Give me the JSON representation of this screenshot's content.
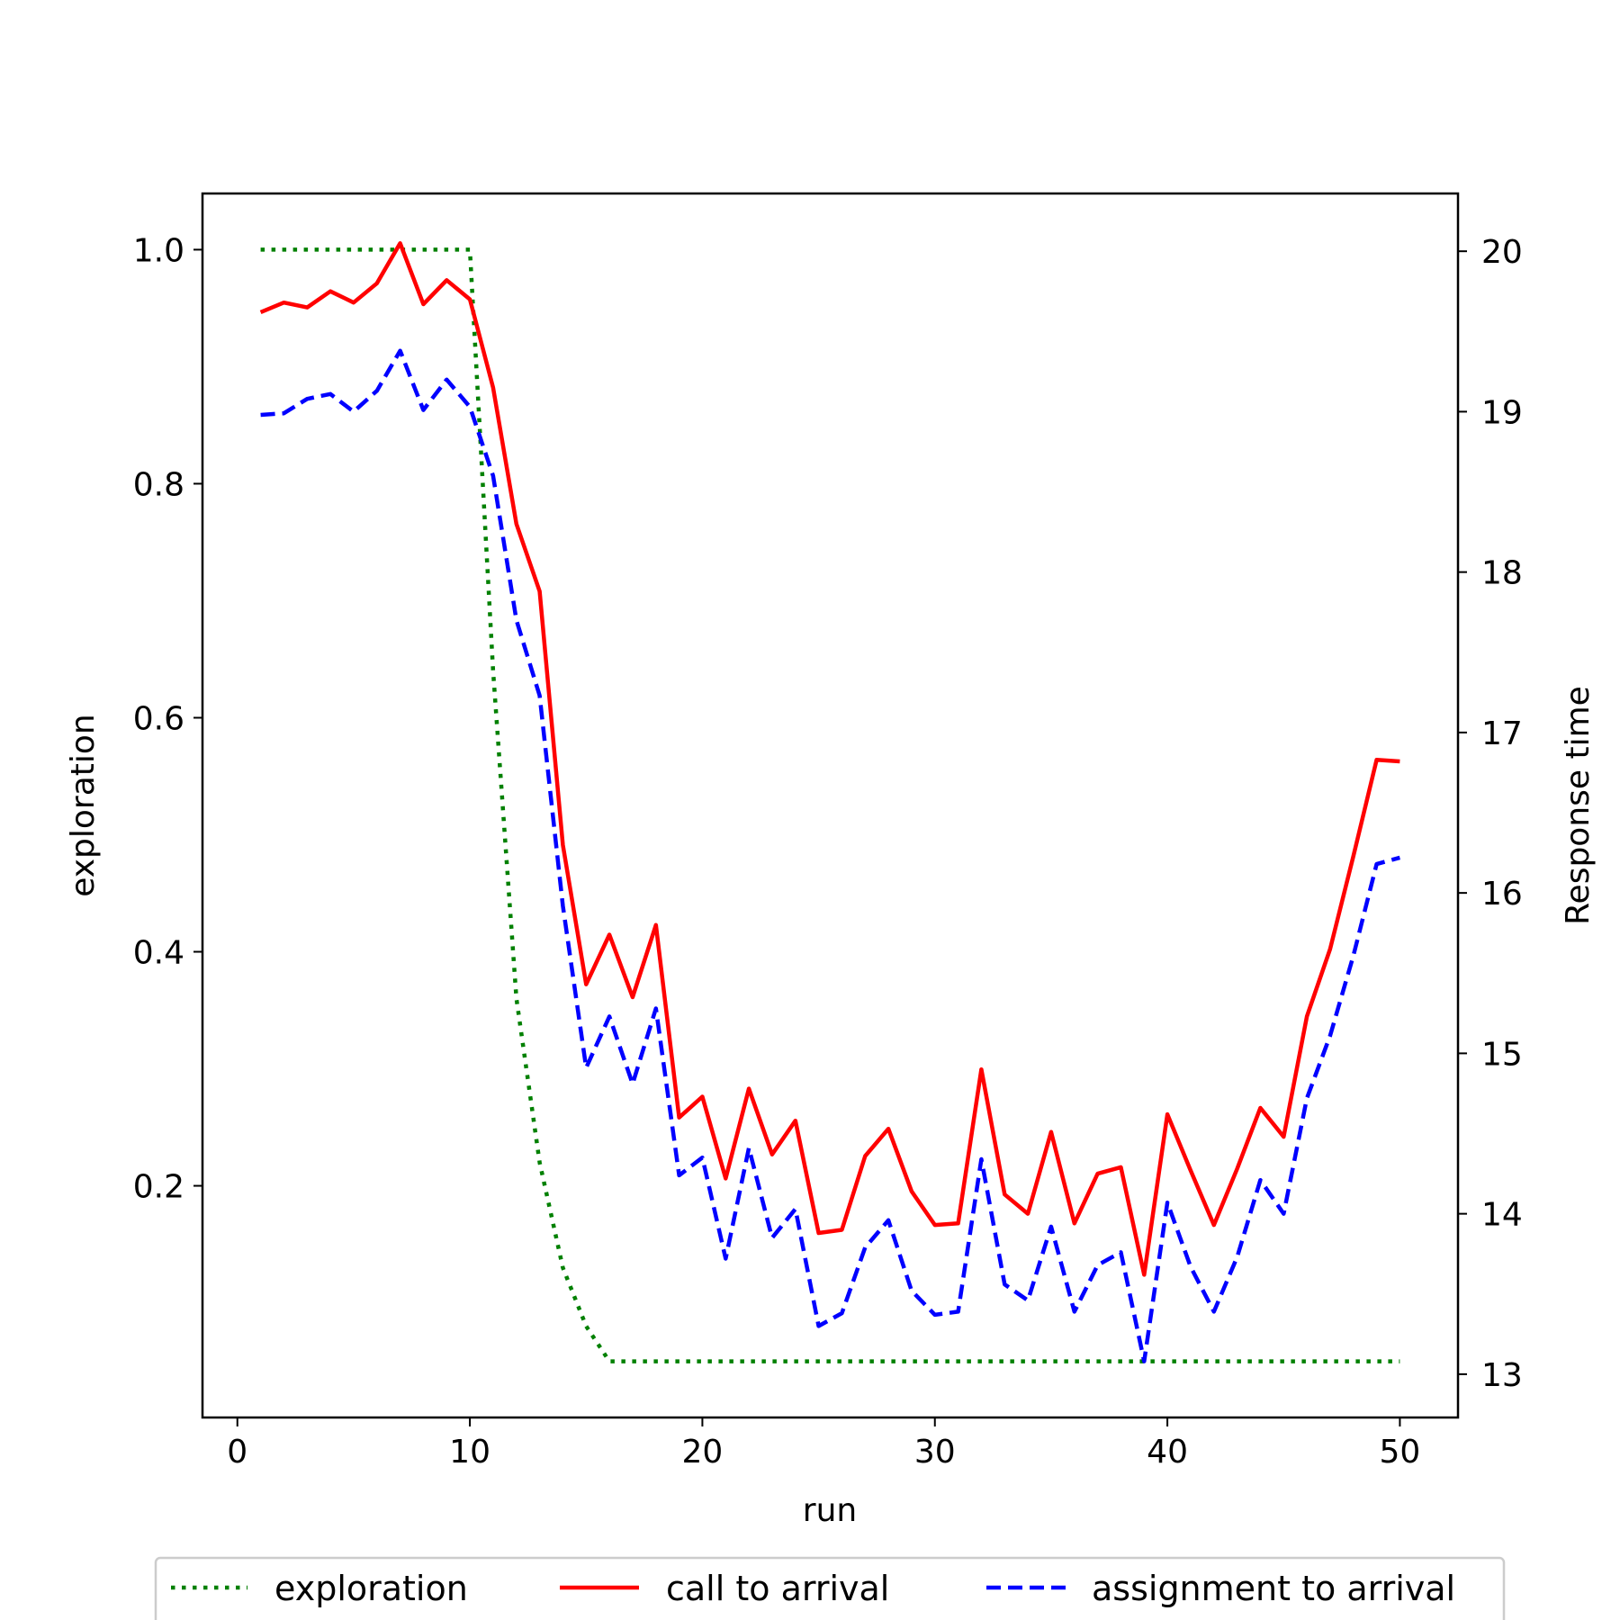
{
  "chart_data": {
    "type": "line",
    "title": "",
    "xlabel": "run",
    "ylabel": "exploration",
    "y2label": "Response time",
    "xlim": [
      -1.5,
      52.5
    ],
    "ylim": [
      0.002,
      1.048
    ],
    "y2lim": [
      12.73,
      20.36
    ],
    "xticks": [
      0,
      10,
      20,
      30,
      40,
      50
    ],
    "yticks": [
      0.2,
      0.4,
      0.6,
      0.8,
      1.0
    ],
    "y2ticks": [
      13,
      14,
      15,
      16,
      17,
      18,
      19,
      20
    ],
    "grid": false,
    "legend_position": "bottom-center",
    "series": [
      {
        "name": "exploration",
        "axis": "left",
        "color": "#008000",
        "style": "dotted",
        "x": [
          1,
          2,
          3,
          4,
          5,
          6,
          7,
          8,
          9,
          10,
          11,
          12,
          13,
          14,
          15,
          16,
          17,
          18,
          19,
          20,
          21,
          22,
          23,
          24,
          25,
          26,
          27,
          28,
          29,
          30,
          31,
          32,
          33,
          34,
          35,
          36,
          37,
          38,
          39,
          40,
          41,
          42,
          43,
          44,
          45,
          46,
          47,
          48,
          49,
          50
        ],
        "values": [
          1.0,
          1.0,
          1.0,
          1.0,
          1.0,
          1.0,
          1.0,
          1.0,
          1.0,
          1.0,
          0.64,
          0.36,
          0.22,
          0.13,
          0.08,
          0.05,
          0.05,
          0.05,
          0.05,
          0.05,
          0.05,
          0.05,
          0.05,
          0.05,
          0.05,
          0.05,
          0.05,
          0.05,
          0.05,
          0.05,
          0.05,
          0.05,
          0.05,
          0.05,
          0.05,
          0.05,
          0.05,
          0.05,
          0.05,
          0.05,
          0.05,
          0.05,
          0.05,
          0.05,
          0.05,
          0.05,
          0.05,
          0.05,
          0.05,
          0.05
        ]
      },
      {
        "name": "call to arrival",
        "axis": "right",
        "color": "#ff0000",
        "style": "solid",
        "x": [
          1,
          2,
          3,
          4,
          5,
          6,
          7,
          8,
          9,
          10,
          11,
          12,
          13,
          14,
          15,
          16,
          17,
          18,
          19,
          20,
          21,
          22,
          23,
          24,
          25,
          26,
          27,
          28,
          29,
          30,
          31,
          32,
          33,
          34,
          35,
          36,
          37,
          38,
          39,
          40,
          41,
          42,
          43,
          44,
          45,
          46,
          47,
          48,
          49,
          50
        ],
        "values": [
          19.62,
          19.68,
          19.65,
          19.75,
          19.68,
          19.8,
          20.05,
          19.67,
          19.82,
          19.7,
          19.15,
          18.3,
          17.88,
          16.3,
          15.43,
          15.74,
          15.35,
          15.8,
          14.6,
          14.73,
          14.22,
          14.78,
          14.37,
          14.58,
          13.88,
          13.9,
          14.36,
          14.53,
          14.14,
          13.93,
          13.94,
          14.9,
          14.12,
          14.0,
          14.51,
          13.94,
          14.25,
          14.29,
          13.62,
          14.62,
          14.27,
          13.93,
          14.28,
          14.66,
          14.48,
          15.23,
          15.65,
          16.23,
          16.83,
          16.82
        ]
      },
      {
        "name": "assignment to arrival",
        "axis": "right",
        "color": "#0000ff",
        "style": "dashed",
        "x": [
          1,
          2,
          3,
          4,
          5,
          6,
          7,
          8,
          9,
          10,
          11,
          12,
          13,
          14,
          15,
          16,
          17,
          18,
          19,
          20,
          21,
          22,
          23,
          24,
          25,
          26,
          27,
          28,
          29,
          30,
          31,
          32,
          33,
          34,
          35,
          36,
          37,
          38,
          39,
          40,
          41,
          42,
          43,
          44,
          45,
          46,
          47,
          48,
          49,
          50
        ],
        "values": [
          18.98,
          18.99,
          19.08,
          19.11,
          19.0,
          19.13,
          19.38,
          19.01,
          19.2,
          19.03,
          18.6,
          17.7,
          17.23,
          15.92,
          14.91,
          15.23,
          14.81,
          15.28,
          14.24,
          14.35,
          13.72,
          14.41,
          13.85,
          14.03,
          13.3,
          13.38,
          13.79,
          13.96,
          13.52,
          13.37,
          13.39,
          14.34,
          13.56,
          13.46,
          13.92,
          13.39,
          13.68,
          13.76,
          13.08,
          14.07,
          13.67,
          13.39,
          13.73,
          14.21,
          14.0,
          14.72,
          15.11,
          15.61,
          16.18,
          16.22
        ]
      }
    ]
  }
}
